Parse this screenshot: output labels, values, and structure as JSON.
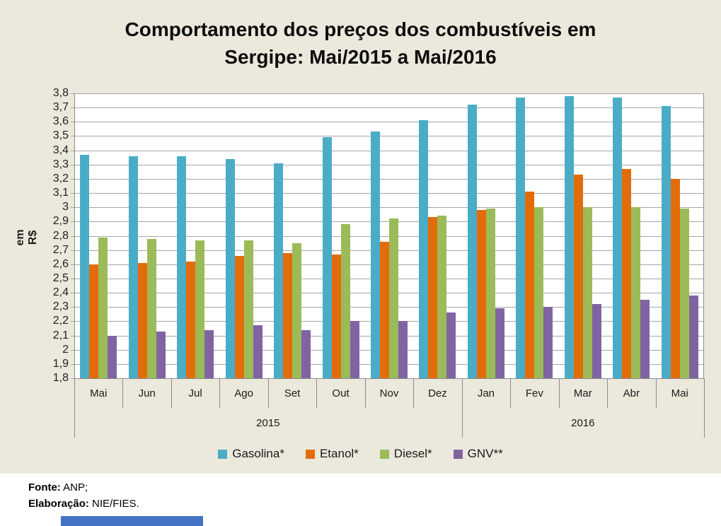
{
  "chart_data": {
    "type": "bar",
    "title": "Comportamento dos preços dos combustíveis em Sergipe: Mai/2015 a Mai/2016",
    "ylabel": "em R$",
    "ylim": [
      1.8,
      3.8
    ],
    "ytick_step": 0.1,
    "grid": true,
    "legend_position": "bottom",
    "categories": [
      "Mai",
      "Jun",
      "Jul",
      "Ago",
      "Set",
      "Out",
      "Nov",
      "Dez",
      "Jan",
      "Fev",
      "Mar",
      "Abr",
      "Mai"
    ],
    "year_groups": [
      {
        "label": "2015",
        "span": 8
      },
      {
        "label": "2016",
        "span": 5
      }
    ],
    "series": [
      {
        "name": "Gasolina*",
        "color": "#4BACC6",
        "values": [
          3.37,
          3.36,
          3.36,
          3.34,
          3.31,
          3.49,
          3.53,
          3.61,
          3.72,
          3.77,
          3.78,
          3.77,
          3.71
        ]
      },
      {
        "name": "Etanol*",
        "color": "#E36C0A",
        "values": [
          2.6,
          2.61,
          2.62,
          2.66,
          2.68,
          2.67,
          2.76,
          2.93,
          2.98,
          3.11,
          3.23,
          3.27,
          3.2
        ]
      },
      {
        "name": "Diesel*",
        "color": "#9BBB59",
        "values": [
          2.79,
          2.78,
          2.77,
          2.77,
          2.75,
          2.88,
          2.92,
          2.94,
          2.99,
          3.0,
          3.0,
          3.0,
          2.99
        ]
      },
      {
        "name": "GNV**",
        "color": "#8064A2",
        "values": [
          2.1,
          2.13,
          2.14,
          2.17,
          2.14,
          2.2,
          2.2,
          2.26,
          2.29,
          2.3,
          2.32,
          2.35,
          2.38
        ]
      }
    ]
  },
  "footer": {
    "fonte_label": "Fonte:",
    "fonte_value": "ANP;",
    "elaboracao_label": "Elaboração:",
    "elaboracao_value": "NIE/FIES."
  },
  "colors": {
    "chart_background": "#EBE8DC",
    "plot_background": "#FFFFFF",
    "gridline": "#A6A6A6",
    "axis": "#8C8C8C",
    "gasolina": "#4BACC6",
    "etanol": "#E36C0A",
    "diesel": "#9BBB59",
    "gnv": "#8064A2",
    "bottom_bar": "#4472C4"
  }
}
